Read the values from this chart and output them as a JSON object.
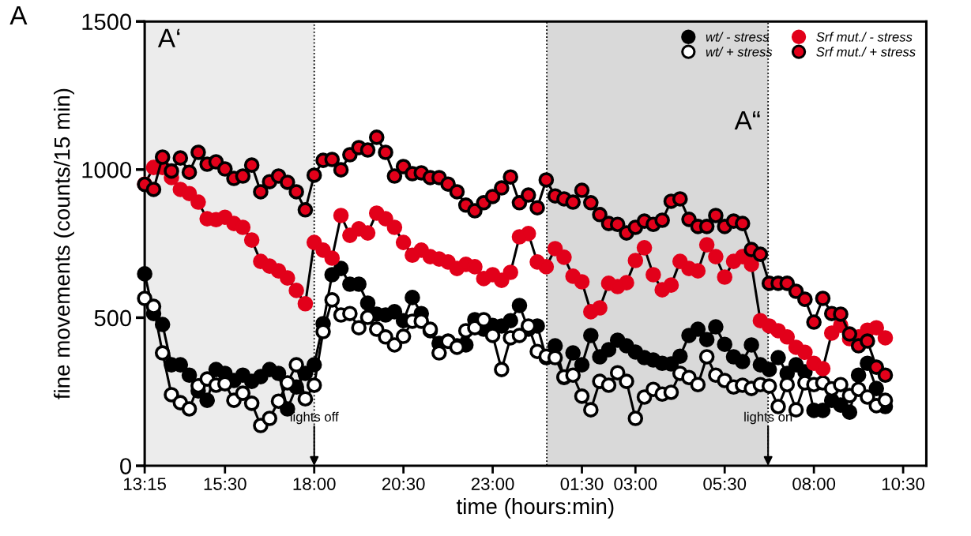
{
  "chart_data": {
    "type": "line",
    "xlabel": "time (hours:min)",
    "ylabel": "fine movements (counts/15 min)",
    "x": [
      "2000-01-01T13:15",
      "2000-01-01T13:30",
      "2000-01-01T13:45",
      "2000-01-01T14:00",
      "2000-01-01T14:15",
      "2000-01-01T14:30",
      "2000-01-01T14:45",
      "2000-01-01T15:00",
      "2000-01-01T15:15",
      "2000-01-01T15:30",
      "2000-01-01T15:45",
      "2000-01-01T16:00",
      "2000-01-01T16:15",
      "2000-01-01T16:30",
      "2000-01-01T16:45",
      "2000-01-01T17:00",
      "2000-01-01T17:15",
      "2000-01-01T17:30",
      "2000-01-01T17:45",
      "2000-01-01T18:00",
      "2000-01-01T18:15",
      "2000-01-01T18:30",
      "2000-01-01T18:45",
      "2000-01-01T19:00",
      "2000-01-01T19:15",
      "2000-01-01T19:30",
      "2000-01-01T19:45",
      "2000-01-01T20:00",
      "2000-01-01T20:15",
      "2000-01-01T20:30",
      "2000-01-01T20:45",
      "2000-01-01T21:00",
      "2000-01-01T21:15",
      "2000-01-01T21:30",
      "2000-01-01T21:45",
      "2000-01-01T22:00",
      "2000-01-01T22:15",
      "2000-01-01T22:30",
      "2000-01-01T22:45",
      "2000-01-01T23:00",
      "2000-01-01T23:15",
      "2000-01-01T23:30",
      "2000-01-01T23:45",
      "2000-01-02T00:00",
      "2000-01-02T00:15",
      "2000-01-02T00:30",
      "2000-01-02T00:45",
      "2000-01-02T01:00",
      "2000-01-02T01:15",
      "2000-01-02T01:30",
      "2000-01-02T01:45",
      "2000-01-02T02:00",
      "2000-01-02T02:15",
      "2000-01-02T02:30",
      "2000-01-02T02:45",
      "2000-01-02T03:00",
      "2000-01-02T03:15",
      "2000-01-02T03:30",
      "2000-01-02T03:45",
      "2000-01-02T04:00",
      "2000-01-02T04:15",
      "2000-01-02T04:30",
      "2000-01-02T04:45",
      "2000-01-02T05:00",
      "2000-01-02T05:15",
      "2000-01-02T05:30",
      "2000-01-02T05:45",
      "2000-01-02T06:00",
      "2000-01-02T06:15",
      "2000-01-02T06:30",
      "2000-01-02T06:45",
      "2000-01-02T07:00",
      "2000-01-02T07:15",
      "2000-01-02T07:30",
      "2000-01-02T07:45",
      "2000-01-02T08:00",
      "2000-01-02T08:15",
      "2000-01-02T08:30",
      "2000-01-02T08:45",
      "2000-01-02T09:00",
      "2000-01-02T09:15",
      "2000-01-02T09:30",
      "2000-01-02T09:45",
      "2000-01-02T10:00"
    ],
    "series": [
      {
        "name": "wt/ - stress",
        "color": "#000000",
        "values": [
          648,
          514,
          477,
          341,
          341,
          306,
          253,
          221,
          325,
          312,
          288,
          306,
          285,
          301,
          325,
          312,
          192,
          266,
          312,
          341,
          480,
          645,
          666,
          613,
          613,
          549,
          512,
          509,
          520,
          490,
          568,
          514,
          456,
          413,
          421,
          405,
          408,
          493,
          461,
          474,
          472,
          490,
          541,
          461,
          472,
          365,
          405,
          298,
          381,
          341,
          440,
          368,
          392,
          424,
          405,
          384,
          365,
          357,
          346,
          344,
          370,
          440,
          461,
          426,
          469,
          410,
          368,
          352,
          408,
          341,
          325,
          365,
          312,
          341,
          317,
          187,
          187,
          221,
          205,
          181,
          306,
          346,
          261,
          200
        ]
      },
      {
        "name": "wt/ + stress",
        "color": "#ffffff",
        "values": [
          565,
          538,
          381,
          240,
          213,
          192,
          270,
          293,
          272,
          277,
          221,
          245,
          211,
          136,
          160,
          218,
          280,
          341,
          226,
          272,
          453,
          560,
          509,
          514,
          466,
          501,
          461,
          435,
          408,
          437,
          488,
          488,
          461,
          381,
          420,
          400,
          456,
          466,
          493,
          440,
          325,
          432,
          440,
          472,
          386,
          370,
          365,
          300,
          306,
          235,
          189,
          285,
          272,
          314,
          285,
          160,
          232,
          258,
          242,
          248,
          312,
          298,
          274,
          368,
          306,
          288,
          266,
          272,
          261,
          274,
          269,
          200,
          274,
          189,
          280,
          274,
          280,
          260,
          274,
          237,
          258,
          232,
          203,
          221
        ]
      },
      {
        "name": "Srf mut./ - stress",
        "color": "#e2001a",
        "values": [
          951,
          1007,
          1007,
          973,
          933,
          919,
          890,
          834,
          831,
          839,
          818,
          805,
          762,
          690,
          674,
          658,
          634,
          592,
          547,
          754,
          728,
          701,
          845,
          778,
          800,
          786,
          853,
          834,
          805,
          754,
          711,
          728,
          706,
          698,
          688,
          666,
          680,
          672,
          632,
          645,
          626,
          653,
          773,
          784,
          688,
          672,
          733,
          704,
          640,
          621,
          520,
          533,
          616,
          605,
          618,
          693,
          736,
          645,
          594,
          610,
          690,
          666,
          658,
          746,
          706,
          637,
          690,
          706,
          680,
          490,
          472,
          456,
          435,
          400,
          383,
          346,
          328,
          448,
          474,
          429,
          435,
          458,
          466,
          432
        ]
      },
      {
        "name": "Srf mut./ + stress",
        "color": "#e2001a",
        "values": [
          950,
          933,
          1042,
          995,
          1039,
          991,
          1058,
          1018,
          1026,
          1002,
          970,
          978,
          1015,
          925,
          959,
          978,
          957,
          925,
          864,
          981,
          1031,
          1034,
          999,
          1050,
          1074,
          1066,
          1109,
          1058,
          978,
          1010,
          986,
          989,
          973,
          973,
          951,
          925,
          880,
          861,
          888,
          909,
          938,
          975,
          888,
          914,
          871,
          965,
          911,
          901,
          890,
          930,
          888,
          848,
          818,
          815,
          786,
          805,
          826,
          815,
          829,
          893,
          901,
          832,
          808,
          808,
          845,
          808,
          826,
          818,
          730,
          714,
          616,
          616,
          616,
          589,
          562,
          485,
          565,
          514,
          512,
          445,
          405,
          421,
          333,
          306
        ]
      }
    ],
    "xlim": [
      "2000-01-01T13:15",
      "2000-01-02T11:09"
    ],
    "xticks": [
      {
        "value": "2000-01-01T13:15",
        "label": "13:15"
      },
      {
        "value": "2000-01-01T15:30",
        "label": "15:30"
      },
      {
        "value": "2000-01-01T18:00",
        "label": "18:00"
      },
      {
        "value": "2000-01-01T20:30",
        "label": "20:30"
      },
      {
        "value": "2000-01-01T23:00",
        "label": "23:00"
      },
      {
        "value": "2000-01-02T01:30",
        "label": "01:30"
      },
      {
        "value": "2000-01-02T03:00",
        "label": "03:00"
      },
      {
        "value": "2000-01-02T05:30",
        "label": "05:30"
      },
      {
        "value": "2000-01-02T08:00",
        "label": "08:00"
      },
      {
        "value": "2000-01-02T10:30",
        "label": "10:30"
      }
    ],
    "ylim": [
      0,
      1500
    ],
    "yticks": [
      0,
      500,
      1000,
      1500
    ],
    "bands": [
      {
        "axis": "x",
        "from": "2000-01-01T13:15",
        "to": "2000-01-01T18:00",
        "label": "A‘",
        "color": "#ececec"
      },
      {
        "axis": "x",
        "from": "2000-01-02T00:31",
        "to": "2000-01-02T06:43",
        "label": "A“",
        "color": "#d9d9d9"
      }
    ],
    "annotations": [
      "A",
      {
        "text": "lights off",
        "x": "2000-01-01T18:00",
        "y": 0
      },
      {
        "text": "lights on",
        "x": "2000-01-02T06:43",
        "y": 0
      }
    ],
    "legend": "top right",
    "grid": false,
    "marker": "circle",
    "line_style": "solid"
  }
}
